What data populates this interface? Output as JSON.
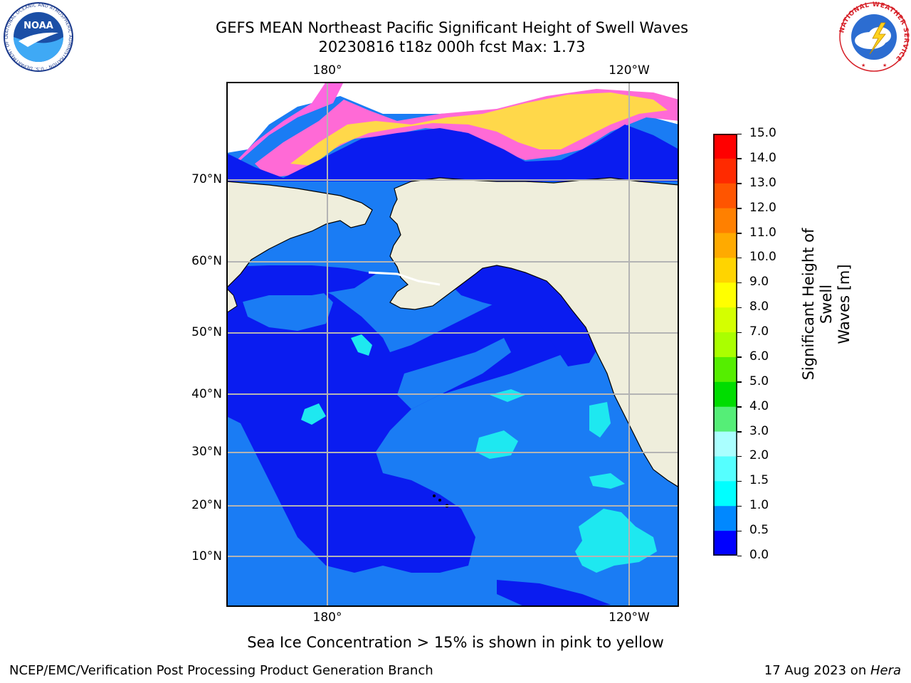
{
  "header": {
    "title_line1": "GEFS MEAN Northeast Pacific Significant Height of Swell Waves",
    "title_line2": "20230816 t18z 000h fcst   Max: 1.73"
  },
  "logos": {
    "noaa_text": "NOAA",
    "noaa_ring": "NATIONAL OCEANIC AND ATMOSPHERIC ADMINISTRATION · U.S. DEPARTMENT OF COMMERCE",
    "nws_ring": "NATIONAL WEATHER SERVICE"
  },
  "map": {
    "lon_labels": [
      "180°",
      "120°W"
    ],
    "lat_labels": [
      "70°N",
      "60°N",
      "50°N",
      "40°N",
      "30°N",
      "20°N",
      "10°N"
    ],
    "colors": {
      "ocean_deep": "#0a1cf0",
      "ocean_mid": "#1a7cf4",
      "ocean_cyan": "#1ee8f0",
      "land": "#efeedc",
      "grid": "#b4b4b4",
      "ice_pink": "#ff66e0",
      "ice_yellow": "#ffd84a"
    }
  },
  "colorbar": {
    "label_line1": "Significant Height of Swell",
    "label_line2": "Waves [m]",
    "ticks": [
      "15.0",
      "14.0",
      "13.0",
      "12.0",
      "11.0",
      "10.0",
      "9.0",
      "8.0",
      "7.0",
      "6.0",
      "5.0",
      "4.0",
      "3.0",
      "2.0",
      "1.5",
      "1.0",
      "0.5",
      "0.0"
    ],
    "colors_top_to_bottom": [
      "#ff0000",
      "#ff2a00",
      "#ff5500",
      "#ff8000",
      "#ffaa00",
      "#ffd400",
      "#ffff00",
      "#d4ff00",
      "#aaff00",
      "#55ee00",
      "#00dd00",
      "#55ee77",
      "#aaffff",
      "#55ffff",
      "#00ffff",
      "#0088ff",
      "#0000ff"
    ]
  },
  "note": "Sea Ice Concentration > 15% is shown in pink to yellow",
  "footer": {
    "left": "NCEP/EMC/Verification Post Processing Product Generation Branch",
    "right_date": "17 Aug 2023 on ",
    "right_host": "Hera"
  }
}
